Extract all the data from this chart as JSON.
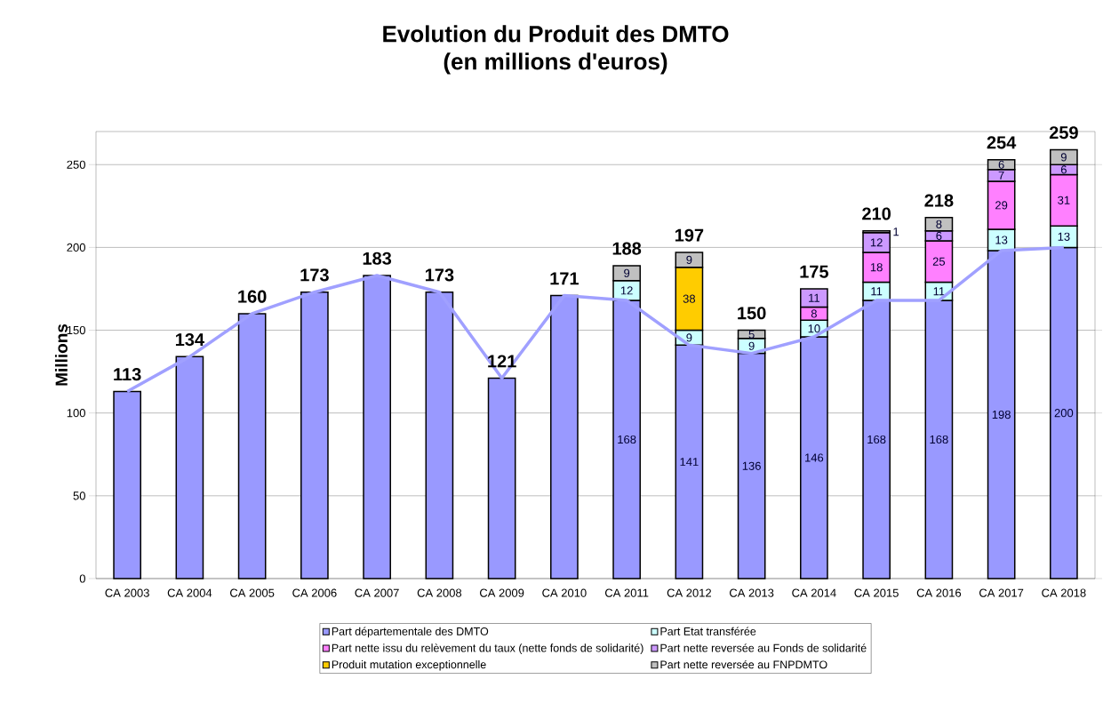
{
  "chart_data": {
    "type": "bar",
    "stacked": true,
    "title": "Evolution du Produit des DMTO",
    "subtitle": "(en millions d'euros)",
    "ylabel": "Millions",
    "categories": [
      "CA 2003",
      "CA 2004",
      "CA 2005",
      "CA 2006",
      "CA 2007",
      "CA 2008",
      "CA 2009",
      "CA 2010",
      "CA 2011",
      "CA 2012",
      "CA 2013",
      "CA 2014",
      "CA 2015",
      "CA 2016",
      "CA 2017",
      "CA 2018"
    ],
    "series": [
      {
        "name": "Part départementale des DMTO",
        "color": "#9999ff",
        "values": [
          113,
          134,
          160,
          173,
          183,
          173,
          121,
          171,
          168,
          141,
          136,
          146,
          168,
          168,
          198,
          200
        ],
        "value_labels": [
          null,
          null,
          null,
          null,
          null,
          null,
          null,
          null,
          "168",
          "141",
          "136",
          "146",
          "168",
          "168",
          "198",
          "200"
        ]
      },
      {
        "name": "Part Etat transférée",
        "color": "#ccffff",
        "values": [
          null,
          null,
          null,
          null,
          null,
          null,
          null,
          null,
          12,
          9,
          9,
          10,
          11,
          11,
          13,
          13
        ],
        "value_labels": [
          null,
          null,
          null,
          null,
          null,
          null,
          null,
          null,
          "12",
          "9",
          "9",
          "10",
          "11",
          "11",
          "13",
          "13"
        ]
      },
      {
        "name": "Part nette issu du relèvement du taux (nette fonds de solidarité)",
        "color": "#ff80ff",
        "values": [
          null,
          null,
          null,
          null,
          null,
          null,
          null,
          null,
          null,
          null,
          null,
          8,
          18,
          25,
          29,
          31
        ],
        "value_labels": [
          null,
          null,
          null,
          null,
          null,
          null,
          null,
          null,
          null,
          null,
          null,
          "8",
          "18",
          "25",
          "29",
          "31"
        ]
      },
      {
        "name": "Part nette reversée au Fonds de solidarité",
        "color": "#cc99ff",
        "values": [
          null,
          null,
          null,
          null,
          null,
          null,
          null,
          null,
          null,
          null,
          null,
          11,
          12,
          6,
          7,
          6
        ],
        "value_labels": [
          null,
          null,
          null,
          null,
          null,
          null,
          null,
          null,
          null,
          null,
          null,
          "11",
          "12",
          "6",
          "7",
          "6"
        ]
      },
      {
        "name": "Produit mutation exceptionnelle",
        "color": "#ffcc00",
        "values": [
          null,
          null,
          null,
          null,
          null,
          null,
          null,
          null,
          null,
          38,
          null,
          null,
          null,
          null,
          null,
          null
        ],
        "value_labels": [
          null,
          null,
          null,
          null,
          null,
          null,
          null,
          null,
          null,
          "38",
          null,
          null,
          null,
          null,
          null,
          null
        ]
      },
      {
        "name": "Part nette reversée au FNPDMTO",
        "color": "#c0c0c0",
        "values": [
          null,
          null,
          null,
          null,
          null,
          null,
          null,
          null,
          9,
          9,
          5,
          null,
          1,
          8,
          6,
          9
        ],
        "value_labels": [
          null,
          null,
          null,
          null,
          null,
          null,
          null,
          null,
          "9",
          "9",
          "5",
          null,
          "1",
          "8",
          "6",
          "9"
        ]
      },
      {
        "type": "line",
        "color": "#a0a0ff",
        "values": [
          113,
          134,
          160,
          173,
          183,
          173,
          121,
          171,
          168,
          141,
          136,
          146,
          168,
          168,
          198,
          200
        ]
      }
    ],
    "totals": [
      "113",
      "134",
      "160",
      "173",
      "183",
      "173",
      "121",
      "171",
      "188",
      "197",
      "150",
      "175",
      "210",
      "218",
      "254",
      "259"
    ],
    "ylim": [
      0,
      270
    ],
    "yticks": [
      0,
      50,
      100,
      150,
      200,
      250
    ],
    "grid": "y",
    "legend": "bottom"
  }
}
